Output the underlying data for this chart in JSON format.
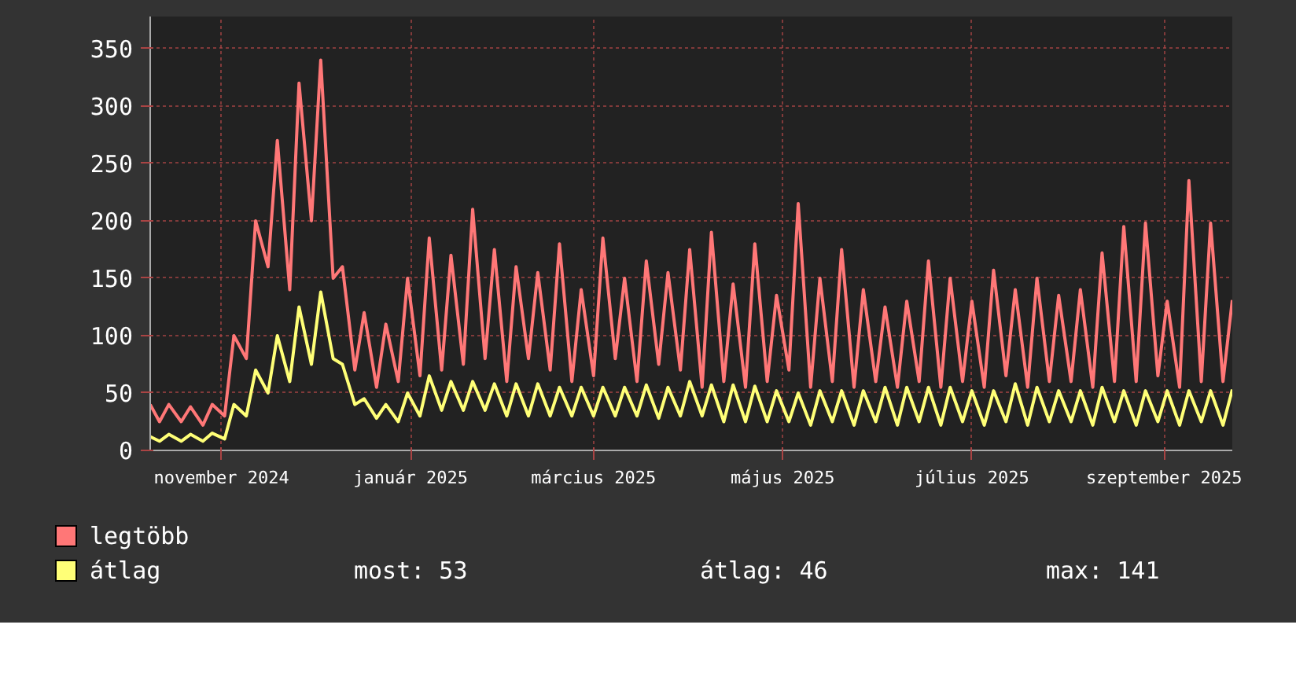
{
  "chart_data": {
    "type": "line",
    "x": [
      "2024-10-09",
      "2024-10-12",
      "2024-10-15",
      "2024-10-19",
      "2024-10-22",
      "2024-10-26",
      "2024-10-29",
      "2024-11-02",
      "2024-11-05",
      "2024-11-09",
      "2024-11-12",
      "2024-11-16",
      "2024-11-19",
      "2024-11-23",
      "2024-11-26",
      "2024-11-30",
      "2024-12-03",
      "2024-12-07",
      "2024-12-10",
      "2024-12-14",
      "2024-12-17",
      "2024-12-21",
      "2024-12-24",
      "2024-12-28",
      "2024-12-31",
      "2025-01-04",
      "2025-01-07",
      "2025-01-11",
      "2025-01-14",
      "2025-01-18",
      "2025-01-21",
      "2025-01-25",
      "2025-01-28",
      "2025-02-01",
      "2025-02-04",
      "2025-02-08",
      "2025-02-11",
      "2025-02-15",
      "2025-02-18",
      "2025-02-22",
      "2025-02-25",
      "2025-03-01",
      "2025-03-04",
      "2025-03-08",
      "2025-03-11",
      "2025-03-15",
      "2025-03-18",
      "2025-03-22",
      "2025-03-25",
      "2025-03-29",
      "2025-04-01",
      "2025-04-05",
      "2025-04-08",
      "2025-04-12",
      "2025-04-15",
      "2025-04-19",
      "2025-04-22",
      "2025-04-26",
      "2025-04-29",
      "2025-05-03",
      "2025-05-06",
      "2025-05-10",
      "2025-05-13",
      "2025-05-17",
      "2025-05-20",
      "2025-05-24",
      "2025-05-27",
      "2025-05-31",
      "2025-06-03",
      "2025-06-07",
      "2025-06-10",
      "2025-06-14",
      "2025-06-17",
      "2025-06-21",
      "2025-06-24",
      "2025-06-28",
      "2025-07-01",
      "2025-07-05",
      "2025-07-08",
      "2025-07-12",
      "2025-07-15",
      "2025-07-19",
      "2025-07-22",
      "2025-07-26",
      "2025-07-29",
      "2025-08-02",
      "2025-08-05",
      "2025-08-09",
      "2025-08-12",
      "2025-08-16",
      "2025-08-19",
      "2025-08-23",
      "2025-08-26",
      "2025-08-30",
      "2025-09-02",
      "2025-09-06",
      "2025-09-09",
      "2025-09-13",
      "2025-09-16",
      "2025-09-20",
      "2025-09-23"
    ],
    "series": [
      {
        "name": "legtöbb",
        "color": "#ff7777",
        "values": [
          40,
          25,
          40,
          25,
          38,
          22,
          40,
          30,
          100,
          80,
          200,
          160,
          270,
          140,
          320,
          200,
          340,
          150,
          160,
          70,
          120,
          55,
          110,
          60,
          150,
          65,
          185,
          70,
          170,
          75,
          210,
          80,
          175,
          60,
          160,
          80,
          155,
          70,
          180,
          60,
          140,
          65,
          185,
          80,
          150,
          60,
          165,
          75,
          155,
          70,
          175,
          55,
          190,
          60,
          145,
          55,
          180,
          60,
          135,
          70,
          215,
          55,
          150,
          60,
          175,
          55,
          140,
          60,
          125,
          55,
          130,
          60,
          165,
          55,
          150,
          60,
          130,
          55,
          157,
          65,
          140,
          55,
          150,
          60,
          135,
          60,
          140,
          55,
          172,
          60,
          195,
          60,
          198,
          65,
          130,
          55,
          235,
          60,
          198,
          60,
          131
        ]
      },
      {
        "name": "átlag",
        "color": "#ffff77",
        "values": [
          12,
          8,
          14,
          8,
          14,
          8,
          15,
          10,
          40,
          30,
          70,
          50,
          100,
          60,
          125,
          75,
          138,
          80,
          75,
          40,
          45,
          28,
          40,
          25,
          50,
          30,
          65,
          35,
          60,
          35,
          60,
          35,
          58,
          30,
          58,
          30,
          58,
          30,
          55,
          30,
          55,
          30,
          55,
          30,
          55,
          30,
          57,
          28,
          55,
          30,
          60,
          30,
          57,
          25,
          57,
          25,
          56,
          25,
          52,
          25,
          50,
          22,
          52,
          25,
          52,
          22,
          52,
          25,
          55,
          22,
          55,
          25,
          55,
          22,
          55,
          25,
          52,
          22,
          52,
          25,
          58,
          22,
          55,
          25,
          52,
          25,
          52,
          22,
          55,
          25,
          52,
          22,
          52,
          25,
          52,
          22,
          52,
          25,
          52,
          22,
          53
        ]
      }
    ],
    "xlim": [
      "2024-10-09",
      "2025-09-23"
    ],
    "xticks": [
      {
        "value": "2024-11-01",
        "label": "november 2024"
      },
      {
        "value": "2025-01-01",
        "label": "január 2025"
      },
      {
        "value": "2025-03-01",
        "label": "március 2025"
      },
      {
        "value": "2025-05-01",
        "label": "május 2025"
      },
      {
        "value": "2025-07-01",
        "label": "július 2025"
      },
      {
        "value": "2025-09-01",
        "label": "szeptember 2025"
      }
    ],
    "ylim": [
      0,
      378
    ],
    "yticks": [
      0,
      50,
      100,
      150,
      200,
      250,
      300,
      350
    ],
    "grid": true,
    "legend": "bottom",
    "annotations": [
      "most: 53",
      "átlag: 46",
      "max: 141"
    ]
  }
}
